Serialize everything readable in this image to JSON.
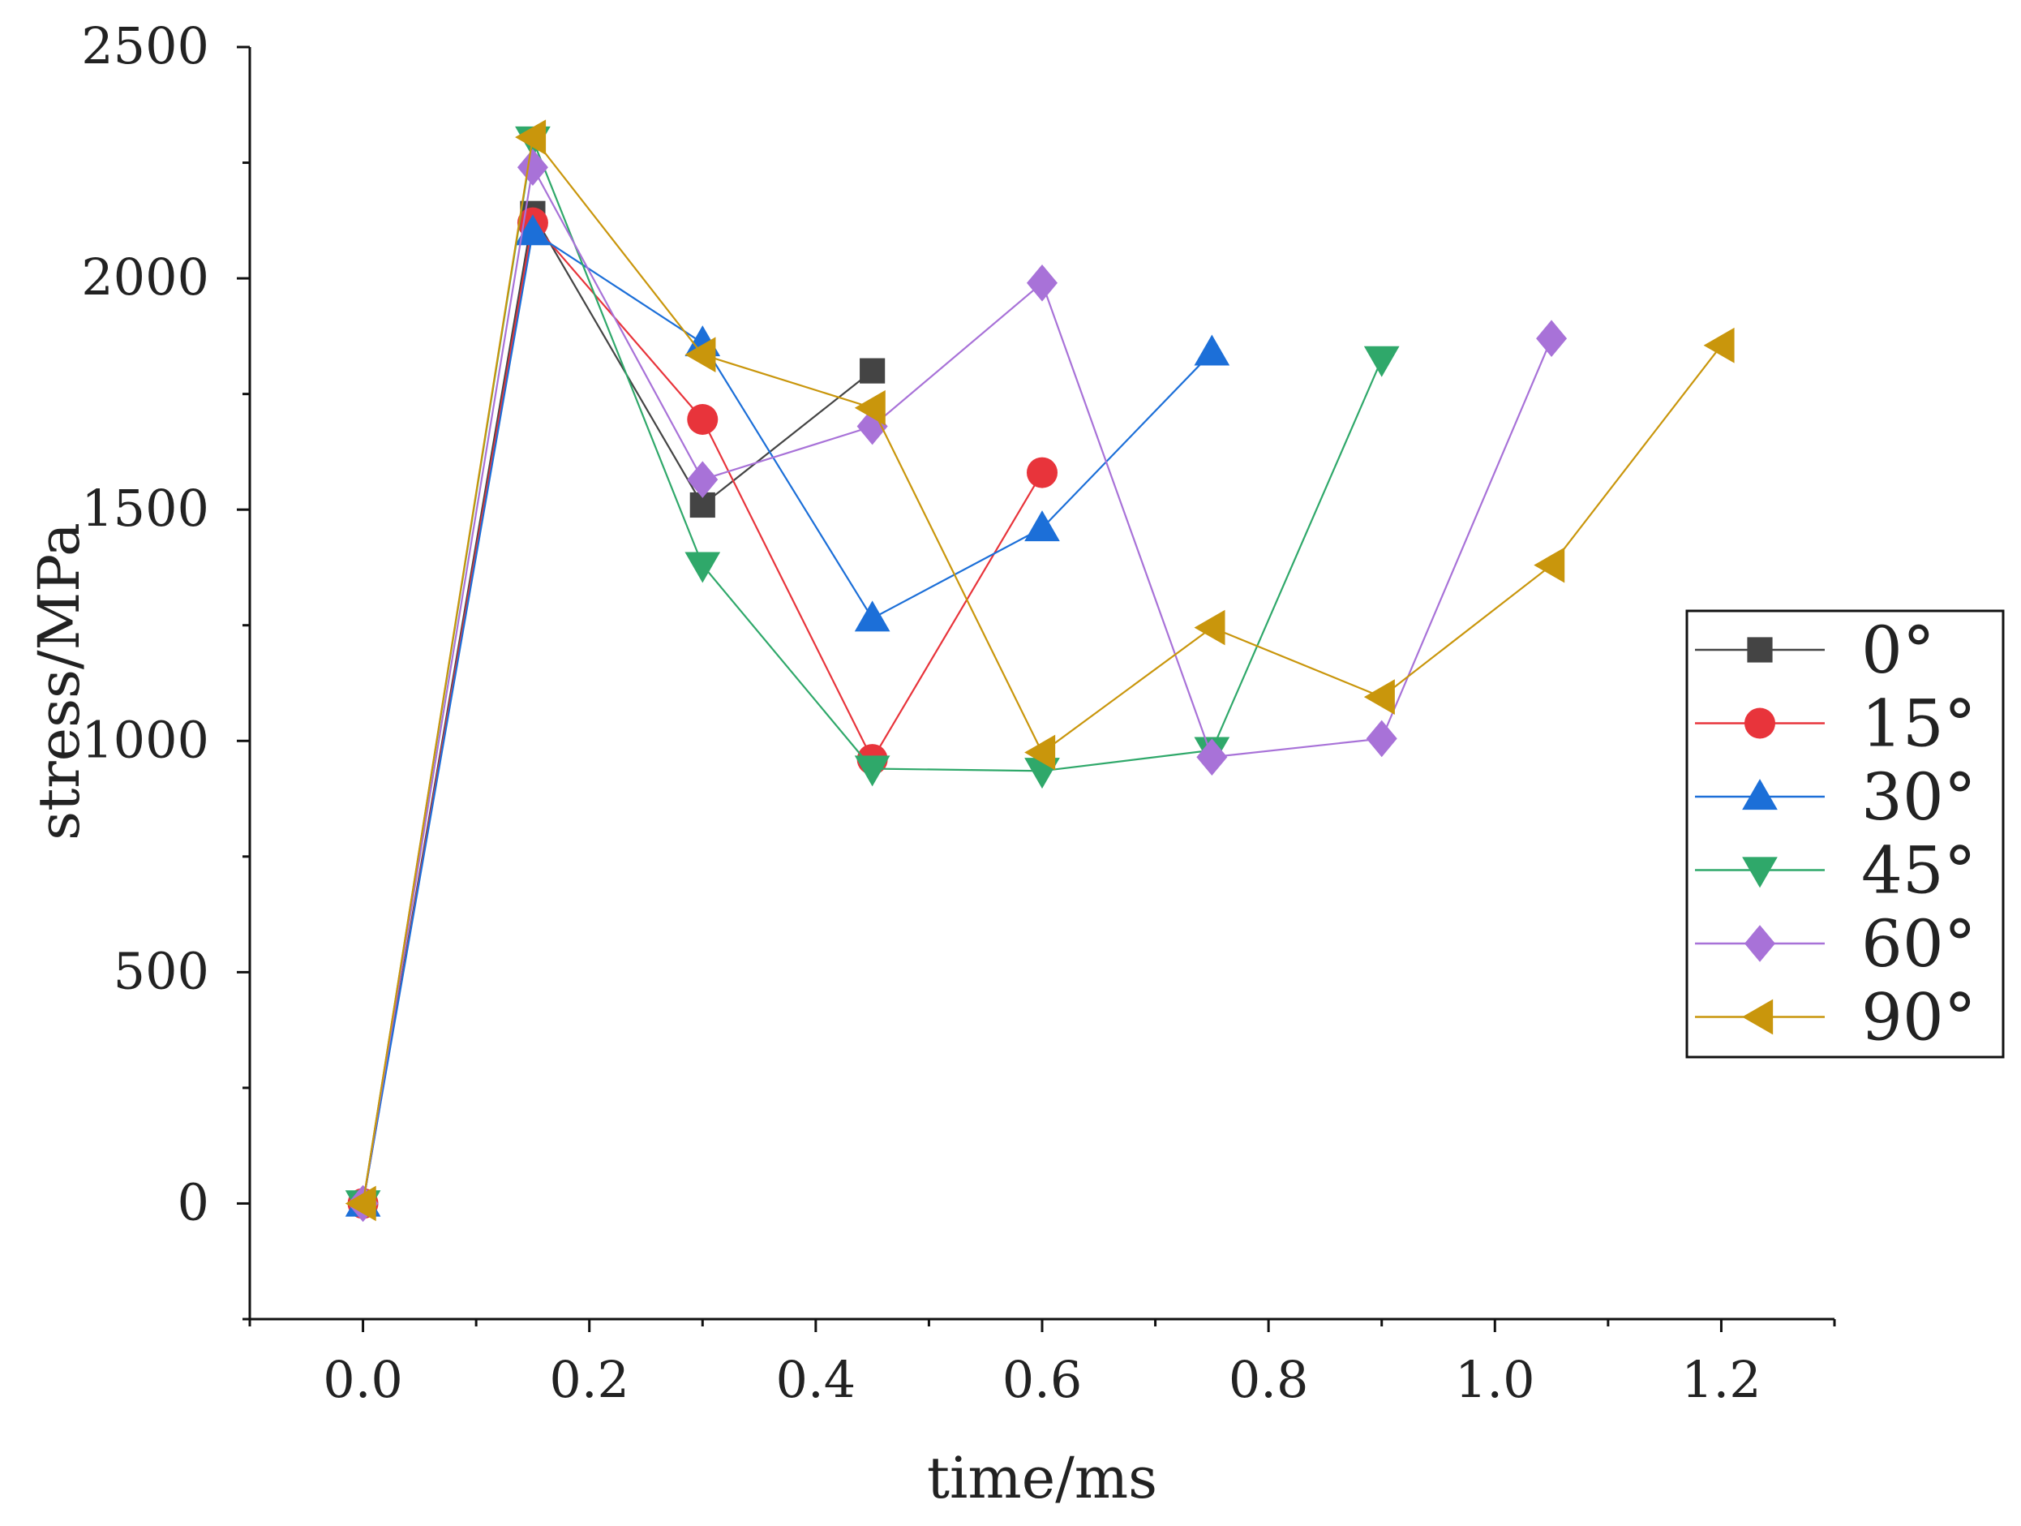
{
  "chart_data": {
    "type": "line",
    "title": "",
    "xlabel": "time/ms",
    "ylabel": "stress/MPa",
    "xlim": [
      -0.1,
      1.3
    ],
    "ylim": [
      -250,
      2500
    ],
    "x_ticks": [
      0.0,
      0.2,
      0.4,
      0.6,
      0.8,
      1.0,
      1.2
    ],
    "x_tick_labels": [
      "0.0",
      "0.2",
      "0.4",
      "0.6",
      "0.8",
      "1.0",
      "1.2"
    ],
    "y_ticks": [
      0,
      500,
      1000,
      1500,
      2000,
      2500
    ],
    "y_tick_labels": [
      "0",
      "500",
      "1000",
      "1500",
      "2000",
      "2500"
    ],
    "grid": false,
    "legend_position": "right",
    "series": [
      {
        "name": "0°",
        "marker": "square",
        "color": "#444444",
        "x": [
          0,
          0.15,
          0.3,
          0.45
        ],
        "values": [
          0,
          2140,
          1510,
          1800
        ]
      },
      {
        "name": "15°",
        "marker": "circle",
        "color": "#e8343b",
        "x": [
          0,
          0.15,
          0.3,
          0.45,
          0.6
        ],
        "values": [
          0,
          2120,
          1695,
          960,
          1580
        ]
      },
      {
        "name": "30°",
        "marker": "triangle-up",
        "color": "#1c6fd8",
        "x": [
          0,
          0.15,
          0.3,
          0.45,
          0.6,
          0.75
        ],
        "values": [
          0,
          2100,
          1860,
          1265,
          1460,
          1840
        ]
      },
      {
        "name": "45°",
        "marker": "triangle-down",
        "color": "#2fa86a",
        "x": [
          0,
          0.15,
          0.3,
          0.45,
          0.6,
          0.75,
          0.9
        ],
        "values": [
          0,
          2300,
          1380,
          940,
          935,
          980,
          1825
        ]
      },
      {
        "name": "60°",
        "marker": "diamond",
        "color": "#a872d8",
        "x": [
          0,
          0.15,
          0.3,
          0.45,
          0.6,
          0.75,
          0.9,
          1.05
        ],
        "values": [
          0,
          2240,
          1565,
          1680,
          1990,
          965,
          1005,
          1870
        ]
      },
      {
        "name": "90°",
        "marker": "triangle-left",
        "color": "#c9960c",
        "x": [
          0,
          0.15,
          0.3,
          0.45,
          0.6,
          0.75,
          0.9,
          1.05,
          1.2
        ],
        "values": [
          0,
          2305,
          1835,
          1720,
          975,
          1245,
          1095,
          1380,
          1855
        ]
      }
    ]
  }
}
